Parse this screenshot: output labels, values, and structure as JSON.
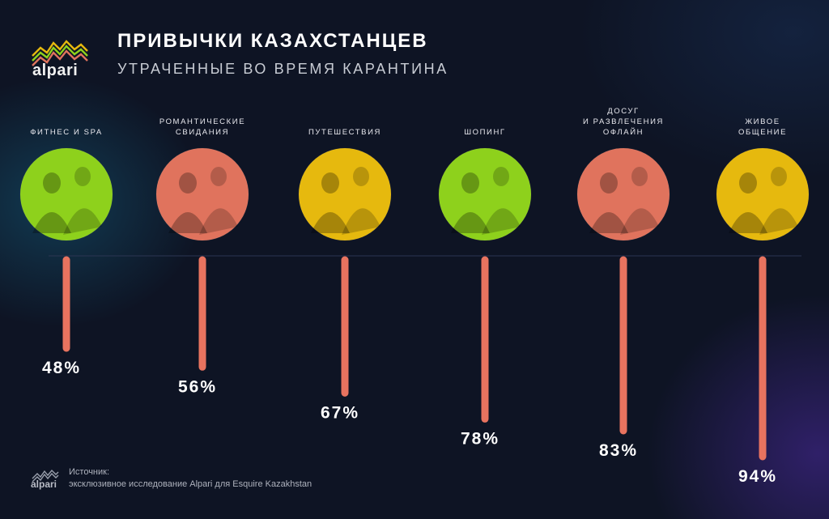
{
  "header": {
    "logo_text": "alpari",
    "title": "ПРИВЫЧКИ КАЗАХСТАНЦЕВ",
    "subtitle": "УТРАЧЕННЫЕ ВО ВРЕМЯ КАРАНТИНА"
  },
  "chart_data": {
    "type": "bar",
    "title": "ПРИВЫЧКИ КАЗАХСТАНЦЕВ",
    "subtitle": "УТРАЧЕННЫЕ ВО ВРЕМЯ КАРАНТИНА",
    "categories": [
      [
        "ФИТНЕС И SPA"
      ],
      [
        "РОМАНТИЧЕСКИЕ",
        "СВИДАНИЯ"
      ],
      [
        "ПУТЕШЕСТВИЯ"
      ],
      [
        "ШОПИНГ"
      ],
      [
        "ДОСУГ",
        "И РАЗВЛЕЧЕНИЯ",
        "ОФЛАЙН"
      ],
      [
        "ЖИВОЕ",
        "ОБЩЕНИЕ"
      ]
    ],
    "values": [
      48,
      56,
      67,
      78,
      83,
      94
    ],
    "value_labels": [
      "48%",
      "56%",
      "67%",
      "78%",
      "83%",
      "94%"
    ],
    "unit": "%",
    "bar_color": "#e8735f",
    "circle_colors": [
      "#8ed11c",
      "#e0735d",
      "#e6b90e",
      "#8ed11c",
      "#e0735d",
      "#e6b90e"
    ],
    "grid": false,
    "legend": "none"
  },
  "footer": {
    "logo_text": "alpari",
    "source_title": "Источник:",
    "source_text": "эксклюзивное исследование Alpari для Esquire Kazakhstan"
  }
}
